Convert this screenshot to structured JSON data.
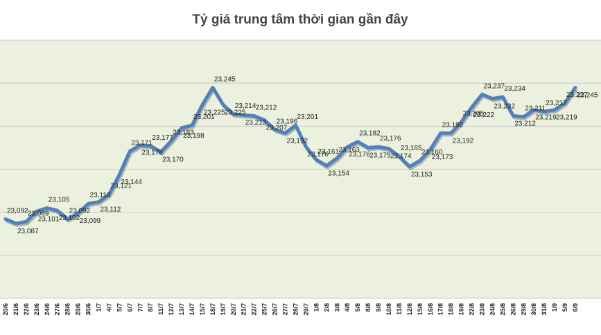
{
  "chart_data": {
    "type": "line",
    "title": "Tỷ giá trung tâm thời gian gần đây",
    "categories": [
      "20/6",
      "21/6",
      "22/6",
      "23/6",
      "24/6",
      "27/6",
      "28/6",
      "29/6",
      "30/6",
      "1/7",
      "4/7",
      "5/7",
      "6/7",
      "7/7",
      "8/7",
      "11/7",
      "12/7",
      "13/7",
      "14/7",
      "15/7",
      "18/7",
      "19/7",
      "20/7",
      "21/7",
      "22/7",
      "25/7",
      "26/7",
      "27/7",
      "28/7",
      "29/7",
      "1/8",
      "2/8",
      "3/8",
      "4/8",
      "5/8",
      "8/8",
      "9/8",
      "10/8",
      "11/8",
      "12/8",
      "15/8",
      "16/8",
      "17/8",
      "18/8",
      "19/8",
      "22/8",
      "23/8",
      "24/8",
      "25/8",
      "26/8",
      "29/8",
      "30/8",
      "31/8",
      "1/9",
      "5/9",
      "6/9"
    ],
    "series": [
      {
        "name": "Tỷ giá trung tâm",
        "color": "#4f81bd",
        "values": [
          23092,
          23087,
          23089,
          23101,
          23105,
          23102,
          23092,
          23099,
          23110,
          23112,
          23121,
          23144,
          23171,
          23178,
          23177,
          23170,
          23183,
          23198,
          23201,
          23225,
          23245,
          23225,
          23214,
          23213,
          23212,
          23207,
          23196,
          23192,
          23201,
          23176,
          23161,
          23154,
          23163,
          23176,
          23182,
          23175,
          23176,
          23174,
          23165,
          23153,
          23160,
          23173,
          23192,
          23192,
          23205,
          23222,
          23237,
          23232,
          23234,
          23212,
          23211,
          23219,
          23217,
          23219,
          23227,
          23245
        ],
        "value_labels": [
          "23,092",
          "23,087",
          "23,089",
          "23,101",
          "23,105",
          "23,102",
          "23,092",
          "23,099",
          "23,110",
          "23,112",
          "23,121",
          "23,144",
          "23,171",
          "23,178",
          "23,177",
          "23,170",
          "23,183",
          "23,198",
          "23,201",
          "23,225",
          "23,245",
          "23,225",
          "23,214",
          "23,213",
          "23,212",
          "23,207",
          "23,196",
          "23,192",
          "23,201",
          "23,176",
          "23,161",
          "23,154",
          "23,163",
          "23,176",
          "23,182",
          "23,175",
          "23,176",
          "23,174",
          "23,165",
          "23,153",
          "23,160",
          "23,173",
          "23,192",
          "23,192",
          "23,205",
          "23,222",
          "23,237",
          "23,232",
          "23,234",
          "23,212",
          "23,211",
          "23,219",
          "23,217",
          "23,219",
          "23,227",
          "23,245"
        ]
      }
    ],
    "ylim": [
      23000,
      23300
    ],
    "yticks": [
      23000,
      23050,
      23100,
      23150,
      23200,
      23250,
      23300
    ],
    "grid": true
  }
}
